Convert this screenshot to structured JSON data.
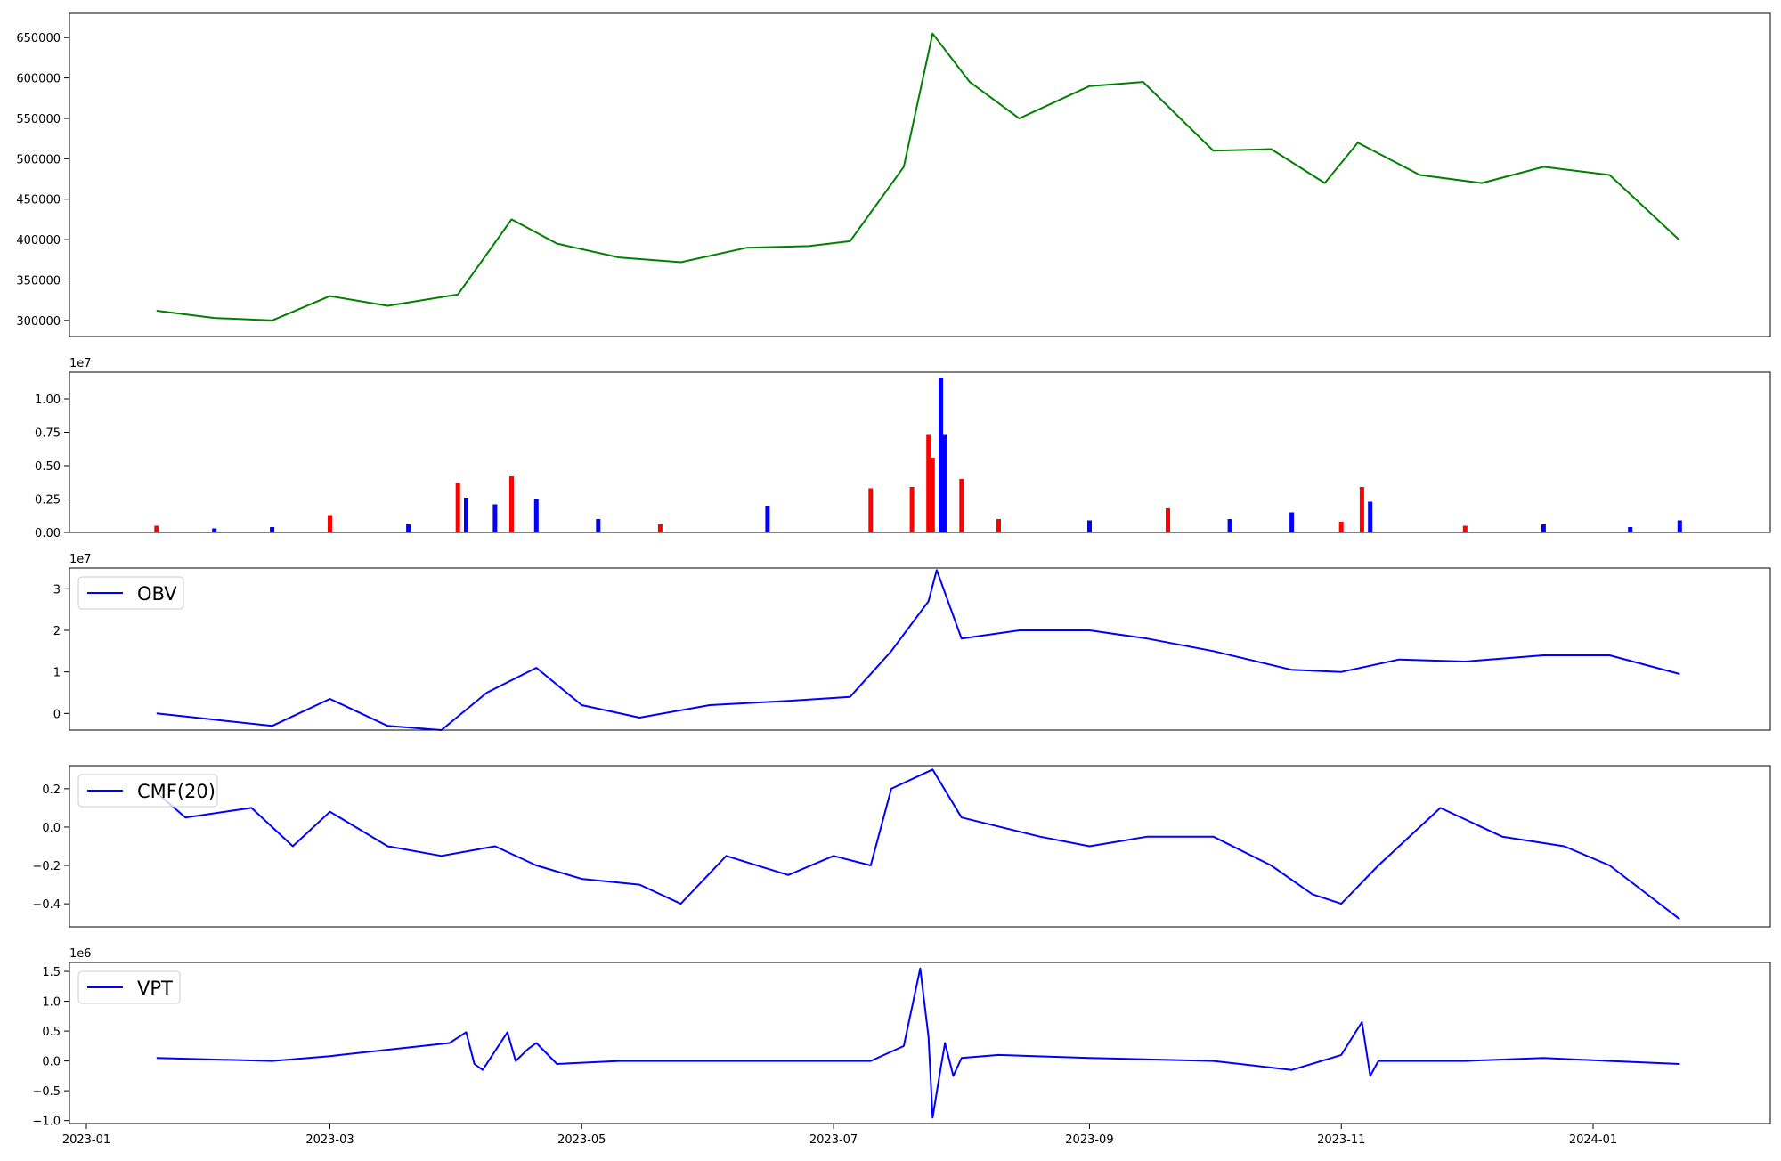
{
  "chart_data": [
    {
      "type": "line",
      "name": "price",
      "title": "",
      "xlabel": "",
      "ylabel": "",
      "color": "#008000",
      "ylim": [
        280000,
        680000
      ],
      "yticks": [
        300000,
        350000,
        400000,
        450000,
        500000,
        550000,
        600000,
        650000
      ],
      "ytick_labels": [
        "300000",
        "350000",
        "400000",
        "450000",
        "500000",
        "550000",
        "600000",
        "650000"
      ],
      "legend": null,
      "x": [
        "2023-01-18",
        "2023-02-01",
        "2023-02-15",
        "2023-03-01",
        "2023-03-15",
        "2023-04-01",
        "2023-04-14",
        "2023-04-25",
        "2023-05-10",
        "2023-05-25",
        "2023-06-10",
        "2023-06-25",
        "2023-07-05",
        "2023-07-18",
        "2023-07-25",
        "2023-08-03",
        "2023-08-15",
        "2023-09-01",
        "2023-09-14",
        "2023-10-01",
        "2023-10-15",
        "2023-10-28",
        "2023-11-05",
        "2023-11-20",
        "2023-12-05",
        "2023-12-20",
        "2024-01-05",
        "2024-01-22"
      ],
      "values": [
        312000,
        303000,
        300000,
        330000,
        318000,
        332000,
        425000,
        395000,
        378000,
        372000,
        390000,
        392000,
        398000,
        490000,
        655000,
        595000,
        550000,
        590000,
        595000,
        510000,
        512000,
        470000,
        520000,
        480000,
        470000,
        490000,
        480000,
        399000
      ]
    },
    {
      "type": "bar",
      "name": "volume",
      "title": "",
      "ylabel": "",
      "offset_label": "1e7",
      "ylim": [
        0,
        1.2
      ],
      "yticks": [
        0.0,
        0.25,
        0.5,
        0.75,
        1.0
      ],
      "ytick_labels": [
        "0.00",
        "0.25",
        "0.50",
        "0.75",
        "1.00"
      ],
      "series_colors": {
        "up": "#ff0000",
        "down": "#0000ff",
        "flat": "#000000"
      },
      "x": [
        "2023-01-18",
        "2023-02-01",
        "2023-02-15",
        "2023-03-01",
        "2023-03-20",
        "2023-04-01",
        "2023-04-03",
        "2023-04-10",
        "2023-04-14",
        "2023-04-20",
        "2023-05-05",
        "2023-05-20",
        "2023-06-15",
        "2023-07-10",
        "2023-07-20",
        "2023-07-24",
        "2023-07-25",
        "2023-07-27",
        "2023-07-28",
        "2023-08-01",
        "2023-08-10",
        "2023-09-01",
        "2023-09-20",
        "2023-10-05",
        "2023-10-20",
        "2023-11-01",
        "2023-11-06",
        "2023-11-08",
        "2023-12-01",
        "2023-12-20",
        "2024-01-10",
        "2024-01-22"
      ],
      "values": [
        0.05,
        0.03,
        0.04,
        0.13,
        0.06,
        0.37,
        0.26,
        0.21,
        0.42,
        0.25,
        0.1,
        0.06,
        0.2,
        0.33,
        0.34,
        0.73,
        0.56,
        1.16,
        0.73,
        0.4,
        0.1,
        0.09,
        0.18,
        0.1,
        0.15,
        0.08,
        0.34,
        0.23,
        0.05,
        0.06,
        0.04,
        0.09
      ],
      "colors": [
        "red",
        "blue",
        "blue",
        "red",
        "blue",
        "red",
        "blue",
        "blue",
        "red",
        "blue",
        "blue",
        "red",
        "blue",
        "red",
        "red",
        "red",
        "red",
        "blue",
        "blue",
        "red",
        "red",
        "blue",
        "red",
        "blue",
        "blue",
        "red",
        "red",
        "blue",
        "red",
        "blue",
        "blue",
        "blue"
      ]
    },
    {
      "type": "line",
      "name": "obv",
      "offset_label": "1e7",
      "color": "#0000ff",
      "legend": [
        "OBV"
      ],
      "ylim": [
        -0.4,
        3.5
      ],
      "yticks": [
        0,
        1,
        2,
        3
      ],
      "ytick_labels": [
        "0",
        "1",
        "2",
        "3"
      ],
      "x": [
        "2023-01-18",
        "2023-02-01",
        "2023-02-15",
        "2023-03-01",
        "2023-03-15",
        "2023-03-28",
        "2023-04-08",
        "2023-04-20",
        "2023-05-01",
        "2023-05-15",
        "2023-06-01",
        "2023-06-20",
        "2023-07-05",
        "2023-07-15",
        "2023-07-24",
        "2023-07-26",
        "2023-08-01",
        "2023-08-15",
        "2023-09-01",
        "2023-09-15",
        "2023-10-01",
        "2023-10-20",
        "2023-11-01",
        "2023-11-15",
        "2023-12-01",
        "2023-12-20",
        "2024-01-05",
        "2024-01-22"
      ],
      "values": [
        0.0,
        -0.15,
        -0.3,
        0.35,
        -0.3,
        -0.4,
        0.5,
        1.1,
        0.2,
        -0.1,
        0.2,
        0.3,
        0.4,
        1.5,
        2.7,
        3.45,
        1.8,
        2.0,
        2.0,
        1.8,
        1.5,
        1.05,
        1.0,
        1.3,
        1.25,
        1.4,
        1.4,
        0.95
      ]
    },
    {
      "type": "line",
      "name": "cmf",
      "color": "#0000ff",
      "legend": [
        "CMF(20)"
      ],
      "ylim": [
        -0.52,
        0.32
      ],
      "yticks": [
        -0.4,
        -0.2,
        0.0,
        0.2
      ],
      "ytick_labels": [
        "−0.4",
        "−0.2",
        "0.0",
        "0.2"
      ],
      "x": [
        "2023-01-18",
        "2023-01-25",
        "2023-02-10",
        "2023-02-20",
        "2023-03-01",
        "2023-03-15",
        "2023-03-28",
        "2023-04-10",
        "2023-04-20",
        "2023-05-01",
        "2023-05-15",
        "2023-05-25",
        "2023-06-05",
        "2023-06-20",
        "2023-07-01",
        "2023-07-10",
        "2023-07-15",
        "2023-07-25",
        "2023-08-01",
        "2023-08-20",
        "2023-09-01",
        "2023-09-15",
        "2023-10-01",
        "2023-10-15",
        "2023-10-25",
        "2023-11-01",
        "2023-11-10",
        "2023-11-25",
        "2023-12-10",
        "2023-12-25",
        "2024-01-05",
        "2024-01-22"
      ],
      "values": [
        0.18,
        0.05,
        0.1,
        -0.1,
        0.08,
        -0.1,
        -0.15,
        -0.1,
        -0.2,
        -0.27,
        -0.3,
        -0.4,
        -0.15,
        -0.25,
        -0.15,
        -0.2,
        0.2,
        0.3,
        0.05,
        -0.05,
        -0.1,
        -0.05,
        -0.05,
        -0.2,
        -0.35,
        -0.4,
        -0.2,
        0.1,
        -0.05,
        -0.1,
        -0.2,
        -0.48
      ]
    },
    {
      "type": "line",
      "name": "vpt",
      "offset_label": "1e6",
      "color": "#0000ff",
      "legend": [
        "VPT"
      ],
      "ylim": [
        -1.05,
        1.65
      ],
      "yticks": [
        -1.0,
        -0.5,
        0.0,
        0.5,
        1.0,
        1.5
      ],
      "ytick_labels": [
        "−1.0",
        "−0.5",
        "0.0",
        "0.5",
        "1.0",
        "1.5"
      ],
      "xtick_labels": [
        "2023-01",
        "2023-03",
        "2023-05",
        "2023-07",
        "2023-09",
        "2023-11",
        "2024-01"
      ],
      "x": [
        "2023-01-18",
        "2023-02-15",
        "2023-03-01",
        "2023-03-30",
        "2023-04-03",
        "2023-04-05",
        "2023-04-07",
        "2023-04-13",
        "2023-04-15",
        "2023-04-18",
        "2023-04-20",
        "2023-04-25",
        "2023-05-10",
        "2023-06-10",
        "2023-07-10",
        "2023-07-18",
        "2023-07-22",
        "2023-07-24",
        "2023-07-25",
        "2023-07-27",
        "2023-07-28",
        "2023-07-30",
        "2023-08-01",
        "2023-08-10",
        "2023-09-01",
        "2023-10-01",
        "2023-10-20",
        "2023-11-01",
        "2023-11-06",
        "2023-11-08",
        "2023-11-10",
        "2023-12-01",
        "2023-12-20",
        "2024-01-05",
        "2024-01-22"
      ],
      "values": [
        0.05,
        0.0,
        0.08,
        0.3,
        0.48,
        -0.05,
        -0.15,
        0.48,
        0.0,
        0.2,
        0.3,
        -0.05,
        0.0,
        0.0,
        0.0,
        0.25,
        1.55,
        0.4,
        -0.95,
        -0.1,
        0.3,
        -0.25,
        0.05,
        0.1,
        0.05,
        0.0,
        -0.15,
        0.1,
        0.65,
        -0.25,
        0.0,
        0.0,
        0.05,
        0.0,
        -0.05
      ]
    }
  ]
}
